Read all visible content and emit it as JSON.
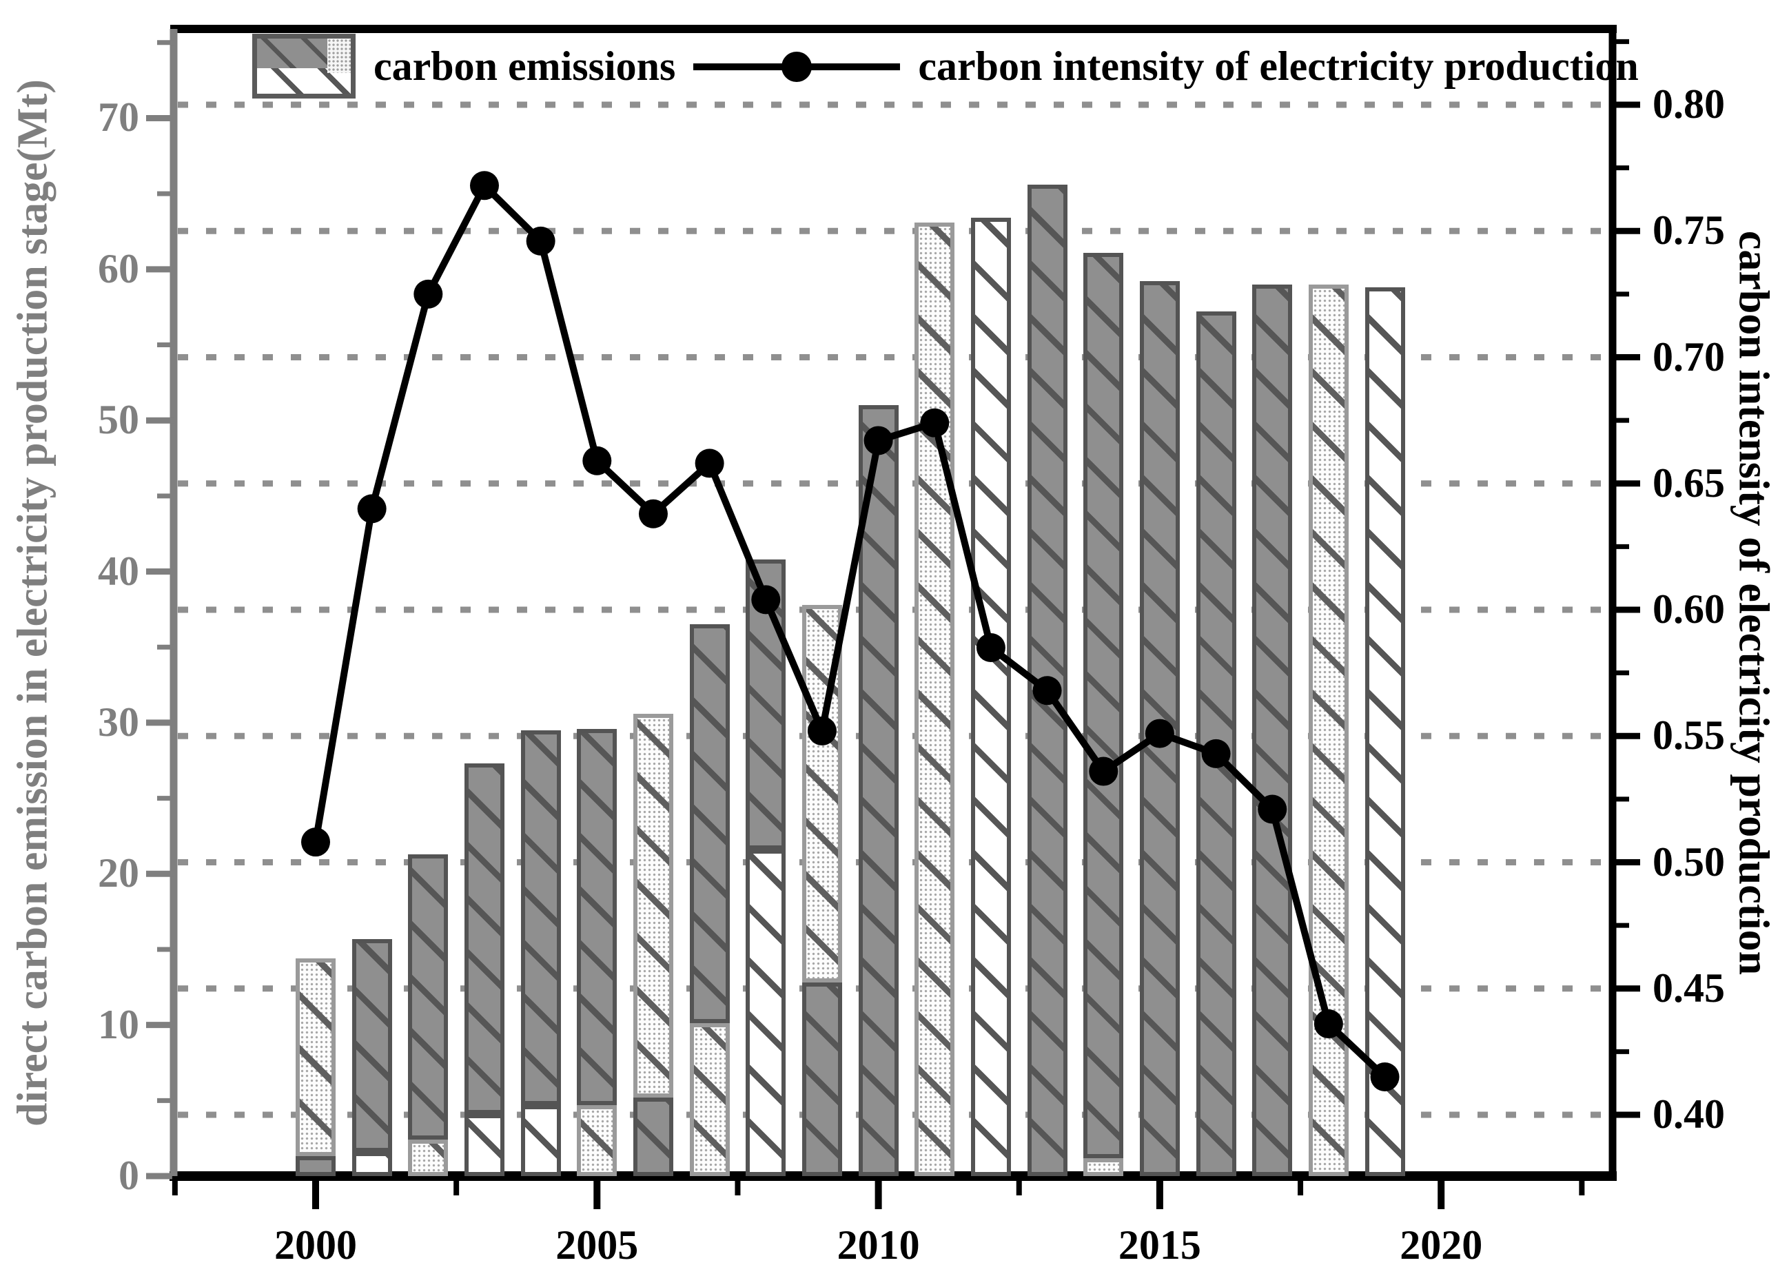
{
  "legend": {
    "bar_label": "carbon emissions",
    "line_label": "carbon intensity of electricity production"
  },
  "axes": {
    "left": {
      "title": "direct carbon emission in electricity production stage(Mt)",
      "tick_labels": [
        "0",
        "10",
        "20",
        "30",
        "40",
        "50",
        "60",
        "70"
      ],
      "tick_values": [
        0,
        10,
        20,
        30,
        40,
        50,
        60,
        70
      ],
      "color": "#7f7f7f"
    },
    "right": {
      "title": "carbon intensity of electricity production",
      "tick_labels": [
        "0.40",
        "0.45",
        "0.50",
        "0.55",
        "0.60",
        "0.65",
        "0.70",
        "0.75",
        "0.80"
      ],
      "tick_values": [
        0.4,
        0.45,
        0.5,
        0.55,
        0.6,
        0.65,
        0.7,
        0.75,
        0.8
      ],
      "color": "#000000"
    },
    "x": {
      "tick_labels": [
        "2000",
        "2005",
        "2010",
        "2015",
        "2020"
      ],
      "tick_values": [
        2000,
        2005,
        2010,
        2015,
        2020
      ],
      "color": "#000000"
    }
  },
  "chart_data": {
    "type": "bar",
    "subtype": "stacked-bars-with-line-overlay",
    "title": "",
    "categories": [
      2000,
      2001,
      2002,
      2003,
      2004,
      2005,
      2006,
      2007,
      2008,
      2009,
      2010,
      2011,
      2012,
      2013,
      2014,
      2015,
      2016,
      2017,
      2018,
      2019
    ],
    "bar_series": {
      "name": "carbon emissions",
      "unit": "Mt",
      "axis": "left",
      "patterns_used": [
        "dark-gray-hatched",
        "dotted-hatched",
        "white-hatched"
      ],
      "bars": [
        {
          "year": 2000,
          "total": 14.4,
          "segments": [
            {
              "pattern": "dark",
              "value": 1.3
            },
            {
              "pattern": "dotted",
              "value": 13.1
            }
          ]
        },
        {
          "year": 2001,
          "total": 15.7,
          "segments": [
            {
              "pattern": "white",
              "value": 1.6
            },
            {
              "pattern": "dark",
              "value": 14.1
            }
          ]
        },
        {
          "year": 2002,
          "total": 21.3,
          "segments": [
            {
              "pattern": "dotted",
              "value": 2.4
            },
            {
              "pattern": "dark",
              "value": 18.9
            }
          ]
        },
        {
          "year": 2003,
          "total": 27.3,
          "segments": [
            {
              "pattern": "white",
              "value": 4.1
            },
            {
              "pattern": "dark",
              "value": 23.2
            }
          ]
        },
        {
          "year": 2004,
          "total": 29.5,
          "segments": [
            {
              "pattern": "white",
              "value": 4.7
            },
            {
              "pattern": "dark",
              "value": 24.8
            }
          ]
        },
        {
          "year": 2005,
          "total": 29.6,
          "segments": [
            {
              "pattern": "dotted",
              "value": 4.7
            },
            {
              "pattern": "dark",
              "value": 24.9
            }
          ]
        },
        {
          "year": 2006,
          "total": 30.6,
          "segments": [
            {
              "pattern": "dark",
              "value": 5.2
            },
            {
              "pattern": "dotted",
              "value": 25.4
            }
          ]
        },
        {
          "year": 2007,
          "total": 36.5,
          "segments": [
            {
              "pattern": "dotted",
              "value": 10.1
            },
            {
              "pattern": "dark",
              "value": 26.4
            }
          ]
        },
        {
          "year": 2008,
          "total": 40.8,
          "segments": [
            {
              "pattern": "white",
              "value": 21.6
            },
            {
              "pattern": "dark",
              "value": 19.2
            }
          ]
        },
        {
          "year": 2009,
          "total": 37.8,
          "segments": [
            {
              "pattern": "dark",
              "value": 12.8
            },
            {
              "pattern": "dotted",
              "value": 25.0
            }
          ]
        },
        {
          "year": 2010,
          "total": 51.0,
          "segments": [
            {
              "pattern": "dark",
              "value": 51.0
            }
          ]
        },
        {
          "year": 2011,
          "total": 63.1,
          "segments": [
            {
              "pattern": "dotted",
              "value": 63.1
            }
          ]
        },
        {
          "year": 2012,
          "total": 63.4,
          "segments": [
            {
              "pattern": "white",
              "value": 63.4
            }
          ]
        },
        {
          "year": 2013,
          "total": 65.6,
          "segments": [
            {
              "pattern": "dark",
              "value": 65.6
            }
          ]
        },
        {
          "year": 2014,
          "total": 61.1,
          "segments": [
            {
              "pattern": "dotted",
              "value": 1.2
            },
            {
              "pattern": "dark",
              "value": 59.9
            }
          ]
        },
        {
          "year": 2015,
          "total": 59.2,
          "segments": [
            {
              "pattern": "dark",
              "value": 59.2
            }
          ]
        },
        {
          "year": 2016,
          "total": 57.2,
          "segments": [
            {
              "pattern": "dark",
              "value": 57.2
            }
          ]
        },
        {
          "year": 2017,
          "total": 59.0,
          "segments": [
            {
              "pattern": "dark",
              "value": 59.0
            }
          ]
        },
        {
          "year": 2018,
          "total": 59.0,
          "segments": [
            {
              "pattern": "dotted",
              "value": 59.0
            }
          ]
        },
        {
          "year": 2019,
          "total": 58.8,
          "segments": [
            {
              "pattern": "white",
              "value": 58.8
            }
          ]
        }
      ]
    },
    "line_series": {
      "name": "carbon intensity of electricity production",
      "axis": "right",
      "marker": "filled-circle",
      "color": "#000000",
      "values": [
        0.508,
        0.64,
        0.725,
        0.768,
        0.746,
        0.659,
        0.638,
        0.658,
        0.604,
        0.552,
        0.667,
        0.674,
        0.585,
        0.568,
        0.536,
        0.551,
        0.543,
        0.521,
        0.436,
        0.415
      ]
    },
    "xlabel": "",
    "ylabel_left": "direct carbon emission in electricity production stage(Mt)",
    "ylabel_right": "carbon intensity of electricity production",
    "ylim_left": [
      0,
      76
    ],
    "ylim_right": [
      0.3757,
      0.8306
    ],
    "xlim": [
      1997.5,
      2023
    ],
    "gridlines": {
      "axis": "right",
      "values": [
        0.4,
        0.45,
        0.5,
        0.55,
        0.6,
        0.65,
        0.7,
        0.75,
        0.8
      ],
      "style": "dotted",
      "color": "#8f8f8f"
    },
    "legend_position": "top-inside"
  },
  "colors": {
    "bar_dark_fill": "#8f8f8f",
    "hatch": "#565656",
    "dotted_dot": "#a7a7a7",
    "left_axis": "#7f7f7f",
    "right_axis": "#000000",
    "line": "#000000",
    "gridline": "#8f8f8f"
  }
}
